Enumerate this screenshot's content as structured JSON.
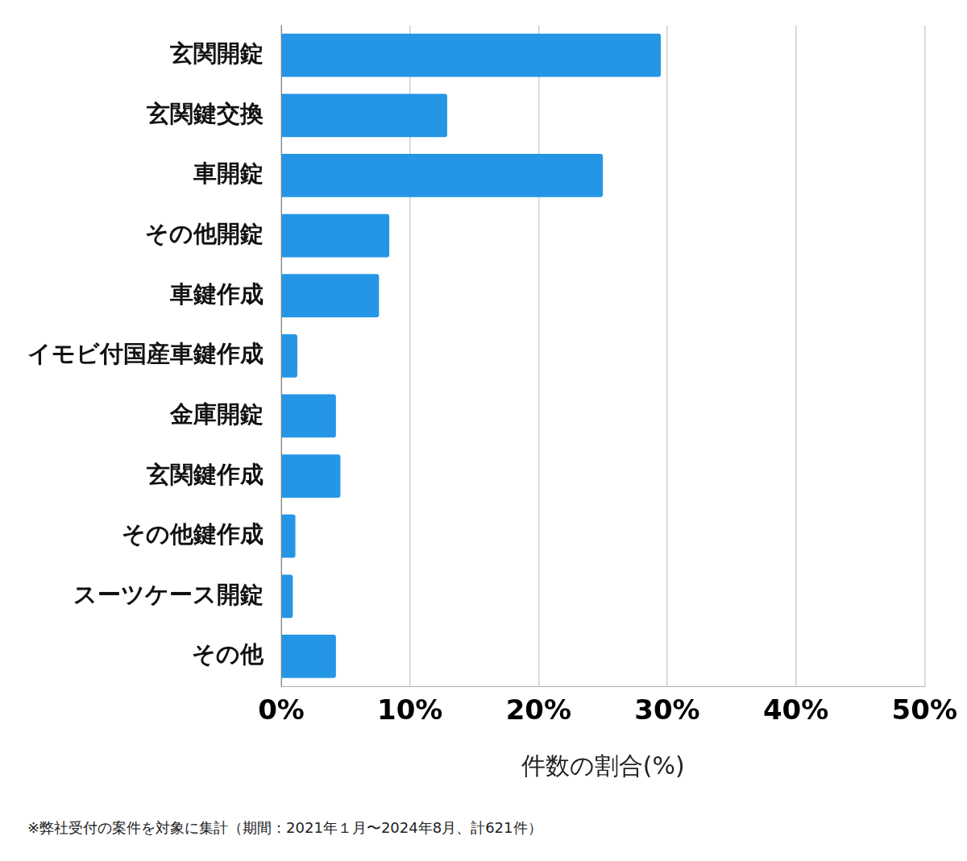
{
  "chart_data": {
    "type": "bar",
    "orientation": "horizontal",
    "categories": [
      "玄関開錠",
      "玄関鍵交換",
      "車開錠",
      "その他開錠",
      "車鍵作成",
      "イモビ付国産車鍵作成",
      "金庫開錠",
      "玄関鍵作成",
      "その他鍵作成",
      "スーツケース開錠",
      "その他"
    ],
    "values": [
      29.5,
      12.9,
      25.0,
      8.4,
      7.6,
      1.25,
      4.25,
      4.6,
      1.1,
      0.9,
      4.25
    ],
    "color": "#2596e6",
    "x_label": "件数の割合(%)",
    "xlim": [
      0,
      50
    ],
    "xticks": [
      {
        "value": 0,
        "label": "0%"
      },
      {
        "value": 10,
        "label": "10%"
      },
      {
        "value": 20,
        "label": "20%"
      },
      {
        "value": 30,
        "label": "30%"
      },
      {
        "value": 40,
        "label": "40%"
      },
      {
        "value": 50,
        "label": "50%"
      }
    ],
    "grid": true,
    "annotations": [
      "※弊社受付の案件を対象に集計（期間：2021年１月〜2024年8月、計621件）"
    ]
  }
}
